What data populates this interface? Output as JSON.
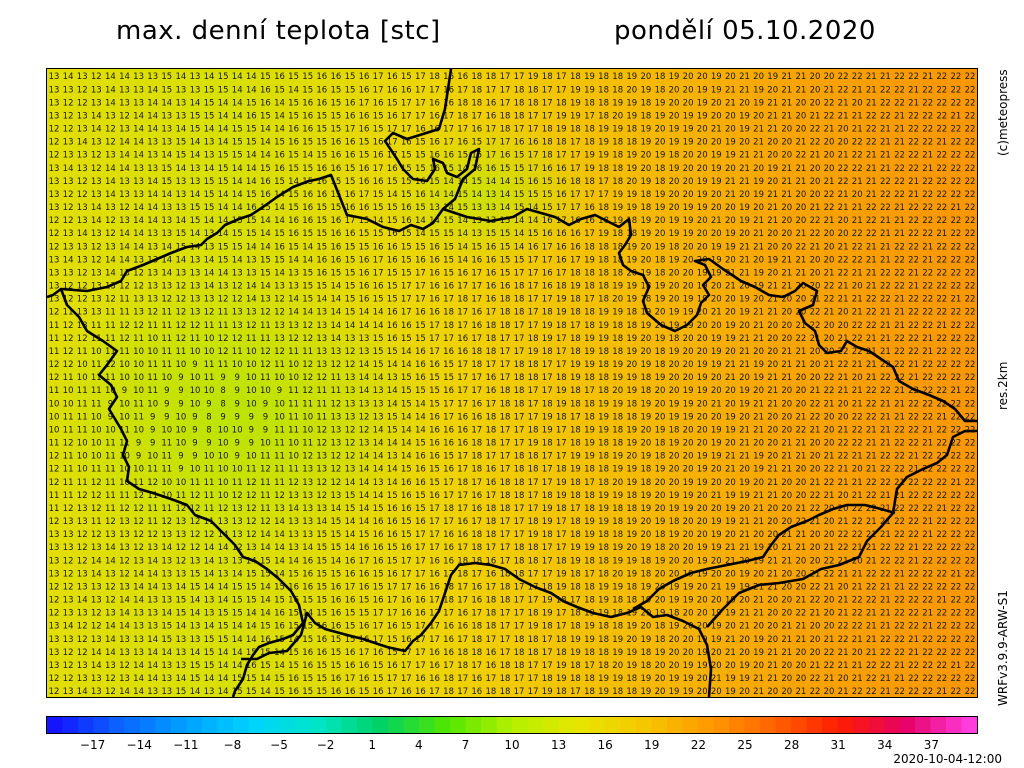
{
  "header": {
    "title": "max. denní teplota [stc]",
    "date": "pondělí 05.10.2020"
  },
  "side_labels": {
    "copyright": "(c)meteopress",
    "resolution": "res.2km",
    "model": "WRFv3.9.9-ARW-S1"
  },
  "map": {
    "grid_cols": 66,
    "grid_rows": 48,
    "approx_temperature_range": [
      7,
      22
    ]
  },
  "colorbar": {
    "tick_labels": [
      "−17",
      "−14",
      "−11",
      "−8",
      "−5",
      "−2",
      "1",
      "4",
      "7",
      "10",
      "13",
      "16",
      "19",
      "22",
      "25",
      "28",
      "31",
      "34",
      "37"
    ],
    "min": -20,
    "max": 40,
    "colors": [
      "#1414ff",
      "#0a64ff",
      "#00a0ff",
      "#00d2ff",
      "#00e6c8",
      "#00d264",
      "#50e600",
      "#b4f000",
      "#e6e600",
      "#f5c800",
      "#ff9b00",
      "#ff6400",
      "#ff1e00",
      "#e60064",
      "#ff3cdc"
    ]
  },
  "footer": {
    "timestamp": "2020-10-04-12:00"
  }
}
